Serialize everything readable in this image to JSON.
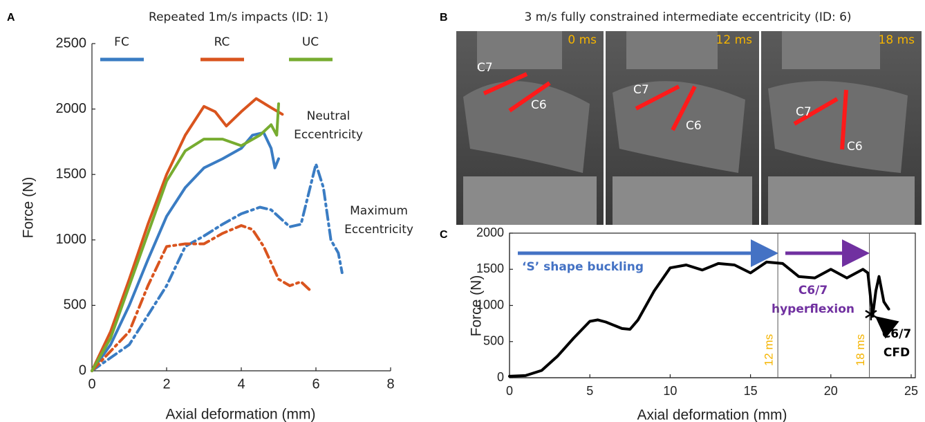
{
  "chart_data": [
    {
      "type": "line",
      "panel_label": "A",
      "title": "Repeated 1m/s impacts (ID: 1)",
      "x_label": "Axial deformation (mm)",
      "y_label": "Force (N)",
      "xlim": [
        0,
        8
      ],
      "xticks": [
        0,
        2,
        4,
        6,
        8
      ],
      "ylim": [
        0,
        2500
      ],
      "yticks": [
        0,
        500,
        1000,
        1500,
        2000,
        2500
      ],
      "annotations": [
        {
          "lines": [
            "Neutral",
            "Eccentricity"
          ]
        },
        {
          "lines": [
            "Maximum",
            "Eccentricity"
          ]
        }
      ],
      "series": [
        {
          "name": "FC",
          "color": "#3a7cc3",
          "curves": [
            {
              "line_style": "solid",
              "x": [
                0,
                0.5,
                1,
                1.5,
                2,
                2.5,
                3,
                3.5,
                4,
                4.3,
                4.6,
                4.8,
                4.9,
                5.0
              ],
              "values": [
                0,
                200,
                500,
                850,
                1180,
                1400,
                1550,
                1620,
                1700,
                1800,
                1820,
                1700,
                1550,
                1620
              ]
            },
            {
              "line_style": "dashdot",
              "x": [
                0,
                1,
                2,
                2.5,
                3,
                3.5,
                4,
                4.5,
                4.8,
                5.3,
                5.6,
                6.0,
                6.2,
                6.4,
                6.6,
                6.7
              ],
              "values": [
                0,
                200,
                650,
                950,
                1030,
                1120,
                1200,
                1250,
                1230,
                1100,
                1120,
                1580,
                1400,
                1000,
                900,
                750
              ]
            }
          ]
        },
        {
          "name": "RC",
          "color": "#d9541e",
          "curves": [
            {
              "line_style": "solid",
              "x": [
                0,
                0.5,
                1,
                1.5,
                2,
                2.5,
                3,
                3.3,
                3.6,
                4,
                4.4,
                4.8,
                5.1
              ],
              "values": [
                0,
                300,
                700,
                1120,
                1500,
                1800,
                2020,
                1980,
                1870,
                1980,
                2080,
                2010,
                1960
              ]
            },
            {
              "line_style": "dashdot",
              "x": [
                0,
                1,
                1.5,
                2,
                2.5,
                3,
                3.5,
                4,
                4.3,
                4.6,
                5,
                5.3,
                5.6,
                5.9
              ],
              "values": [
                0,
                300,
                650,
                950,
                970,
                970,
                1050,
                1110,
                1080,
                950,
                700,
                650,
                680,
                600
              ]
            }
          ]
        },
        {
          "name": "UC",
          "color": "#77ac30",
          "curves": [
            {
              "line_style": "solid",
              "x": [
                0,
                0.5,
                1,
                1.5,
                2,
                2.5,
                3,
                3.5,
                4,
                4.5,
                4.8,
                4.95,
                5.0
              ],
              "values": [
                0,
                250,
                650,
                1050,
                1450,
                1680,
                1770,
                1770,
                1720,
                1800,
                1880,
                1800,
                2040
              ]
            }
          ]
        }
      ]
    },
    {
      "type": "line",
      "panel_label": "C",
      "x_label": "Axial deformation (mm)",
      "y_label": "Force (N)",
      "xlim": [
        0,
        25
      ],
      "xticks": [
        0,
        5,
        10,
        15,
        20,
        25
      ],
      "ylim": [
        0,
        2000
      ],
      "yticks": [
        0,
        500,
        1000,
        1500,
        2000
      ],
      "annotations": [
        {
          "lines": [
            "‘S’ shape buckling"
          ]
        },
        {
          "lines": [
            "C6/7",
            "hyperflexion"
          ]
        },
        {
          "lines": [
            "C6/7",
            "CFD"
          ]
        }
      ],
      "markers": [
        {
          "x": 16.7,
          "label": "12 ms",
          "color": "#f5b400"
        },
        {
          "x": 22.4,
          "label": "18 ms",
          "color": "#f5b400"
        }
      ],
      "failure_point": {
        "x": 22.5,
        "y": 880
      },
      "series": [
        {
          "color": "#000000",
          "x": [
            0,
            1,
            2,
            3,
            4,
            5,
            5.5,
            6,
            7,
            7.5,
            8,
            9,
            10,
            11,
            12,
            13,
            14,
            15,
            16,
            17,
            18,
            19,
            20,
            21,
            22,
            22.3,
            22.6,
            22.8,
            23,
            23.3,
            23.6
          ],
          "values": [
            20,
            30,
            100,
            300,
            550,
            780,
            800,
            770,
            680,
            670,
            800,
            1200,
            1520,
            1560,
            1490,
            1580,
            1560,
            1450,
            1600,
            1580,
            1400,
            1380,
            1500,
            1380,
            1500,
            1450,
            850,
            1200,
            1400,
            1050,
            950
          ]
        }
      ]
    }
  ],
  "panel_b": {
    "panel_label": "B",
    "title": "3 m/s fully constrained intermediate eccentricity (ID: 6)",
    "frames": [
      {
        "time": "0 ms",
        "upper": "C7",
        "lower": "C6"
      },
      {
        "time": "12 ms",
        "upper": "C7",
        "lower": "C6"
      },
      {
        "time": "18 ms",
        "upper": "C7",
        "lower": "C6"
      }
    ]
  }
}
